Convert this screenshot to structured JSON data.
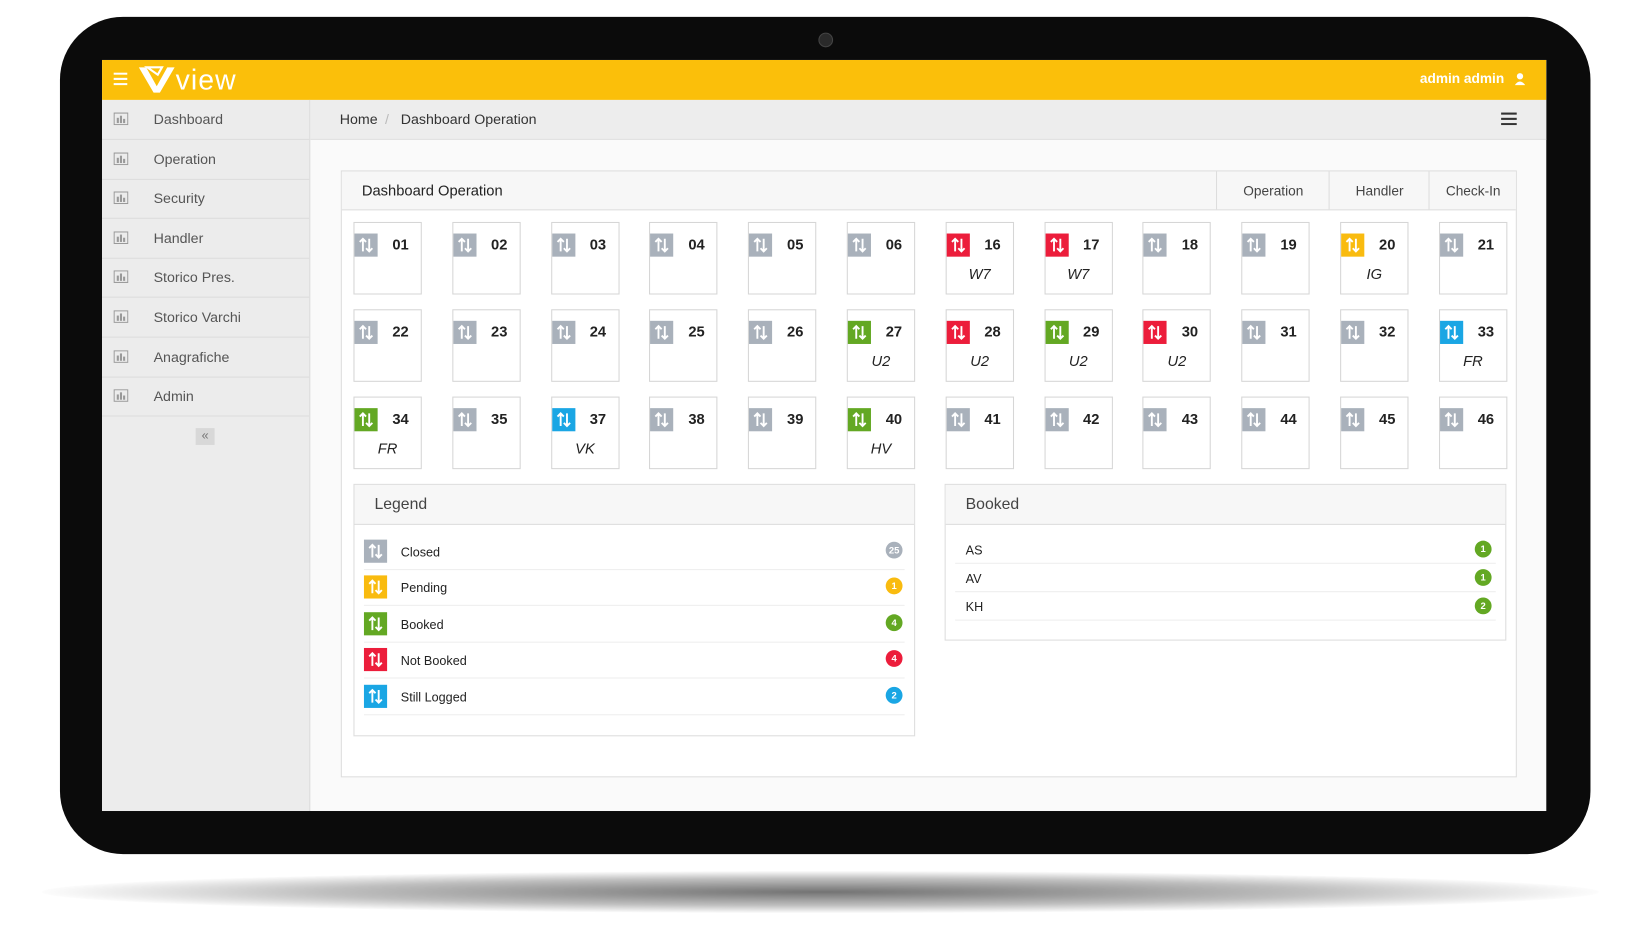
{
  "header": {
    "logo": "view",
    "user": "admin admin"
  },
  "sidebar": [
    "Dashboard",
    "Operation",
    "Security",
    "Handler",
    "Storico Pres.",
    "Storico Varchi",
    "Anagrafiche",
    "Admin"
  ],
  "breadcrumb": [
    "Home",
    "Dashboard Operation"
  ],
  "panel": {
    "title": "Dashboard Operation",
    "tabs": [
      "Operation",
      "Handler",
      "Check-In"
    ]
  },
  "gates": [
    {
      "number": "01",
      "color": "#a9b1bb"
    },
    {
      "number": "02",
      "color": "#a9b1bb"
    },
    {
      "number": "03",
      "color": "#a9b1bb"
    },
    {
      "number": "04",
      "color": "#a9b1bb"
    },
    {
      "number": "05",
      "color": "#a9b1bb"
    },
    {
      "number": "06",
      "color": "#a9b1bb"
    },
    {
      "number": "16",
      "color": "#ec1d3b",
      "code": "W7"
    },
    {
      "number": "17",
      "color": "#ec1d3b",
      "code": "W7"
    },
    {
      "number": "18",
      "color": "#a9b1bb"
    },
    {
      "number": "19",
      "color": "#a9b1bb"
    },
    {
      "number": "20",
      "color": "#f9bb0f",
      "code": "IG"
    },
    {
      "number": "21",
      "color": "#a9b1bb"
    },
    {
      "number": "22",
      "color": "#a9b1bb"
    },
    {
      "number": "23",
      "color": "#a9b1bb"
    },
    {
      "number": "24",
      "color": "#a9b1bb"
    },
    {
      "number": "25",
      "color": "#a9b1bb"
    },
    {
      "number": "26",
      "color": "#a9b1bb"
    },
    {
      "number": "27",
      "color": "#63a823",
      "code": "U2"
    },
    {
      "number": "28",
      "color": "#ec1d3b",
      "code": "U2"
    },
    {
      "number": "29",
      "color": "#63a823",
      "code": "U2"
    },
    {
      "number": "30",
      "color": "#ec1d3b",
      "code": "U2"
    },
    {
      "number": "31",
      "color": "#a9b1bb"
    },
    {
      "number": "32",
      "color": "#a9b1bb"
    },
    {
      "number": "33",
      "color": "#1aa6e4",
      "code": "FR"
    },
    {
      "number": "34",
      "color": "#63a823",
      "code": "FR"
    },
    {
      "number": "35",
      "color": "#a9b1bb"
    },
    {
      "number": "37",
      "color": "#1aa6e4",
      "code": "VK"
    },
    {
      "number": "38",
      "color": "#a9b1bb"
    },
    {
      "number": "39",
      "color": "#a9b1bb"
    },
    {
      "number": "40",
      "color": "#63a823",
      "code": "HV"
    },
    {
      "number": "41",
      "color": "#a9b1bb"
    },
    {
      "number": "42",
      "color": "#a9b1bb"
    },
    {
      "number": "43",
      "color": "#a9b1bb"
    },
    {
      "number": "44",
      "color": "#a9b1bb"
    },
    {
      "number": "45",
      "color": "#a9b1bb"
    },
    {
      "number": "46",
      "color": "#a9b1bb"
    }
  ],
  "legend": {
    "title": "Legend",
    "items": [
      {
        "label": "Closed",
        "count": 25,
        "color": "#a9b1bb"
      },
      {
        "label": "Pending",
        "count": 1,
        "color": "#f9bb0f"
      },
      {
        "label": "Booked",
        "count": 4,
        "color": "#63a823"
      },
      {
        "label": "Not Booked",
        "count": 4,
        "color": "#ec1d3b"
      },
      {
        "label": "Still Logged",
        "count": 2,
        "color": "#1aa6e4"
      }
    ]
  },
  "booked": {
    "title": "Booked",
    "items": [
      {
        "name": "AS",
        "count": 1
      },
      {
        "name": "AV",
        "count": 1
      },
      {
        "name": "KH",
        "count": 2
      }
    ],
    "color": "#63a823"
  }
}
